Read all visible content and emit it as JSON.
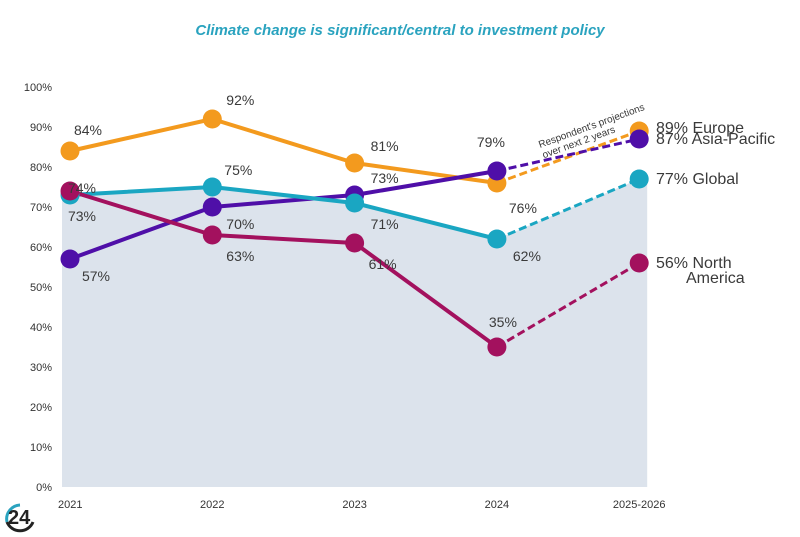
{
  "chart_data": {
    "type": "line",
    "title": "Climate change is significant/central to investment policy",
    "xlabel": "",
    "ylabel": "",
    "categories": [
      "2021",
      "2022",
      "2023",
      "2024",
      "2025-2026"
    ],
    "y_ticks": [
      "0%",
      "10%",
      "20%",
      "30%",
      "40%",
      "50%",
      "60%",
      "70%",
      "80%",
      "90%",
      "100%"
    ],
    "ylim": [
      0,
      100
    ],
    "grid": false,
    "projection_from_index": 3,
    "annotation": [
      "Respondent's projections",
      "over next 2 years"
    ],
    "series": [
      {
        "name": "Europe",
        "color": "#f39a1e",
        "values": [
          84,
          92,
          81,
          76,
          89
        ],
        "labels": [
          "84%",
          "92%",
          "81%",
          "76%",
          "89%"
        ]
      },
      {
        "name": "Asia-Pacific",
        "color": "#4f0fa8",
        "values": [
          57,
          70,
          73,
          79,
          87
        ],
        "labels": [
          "57%",
          "70%",
          "73%",
          "79%",
          "87%"
        ]
      },
      {
        "name": "Global",
        "color": "#1aa6c2",
        "values": [
          73,
          75,
          71,
          62,
          77
        ],
        "labels": [
          "73%",
          "75%",
          "71%",
          "62%",
          "77%"
        ],
        "area_fill": "#dce3ec"
      },
      {
        "name": "North America",
        "color": "#a3115e",
        "values": [
          74,
          63,
          61,
          35,
          56
        ],
        "labels": [
          "74%",
          "63%",
          "61%",
          "35%",
          "56%"
        ]
      }
    ],
    "end_labels": [
      {
        "value": "89%",
        "name": "Europe"
      },
      {
        "value": "87%",
        "name": "Asia-Pacific"
      },
      {
        "value": "77%",
        "name": "Global"
      },
      {
        "value": "56%",
        "name": "North",
        "name2": "America"
      }
    ]
  },
  "logo": {
    "text": "24"
  }
}
